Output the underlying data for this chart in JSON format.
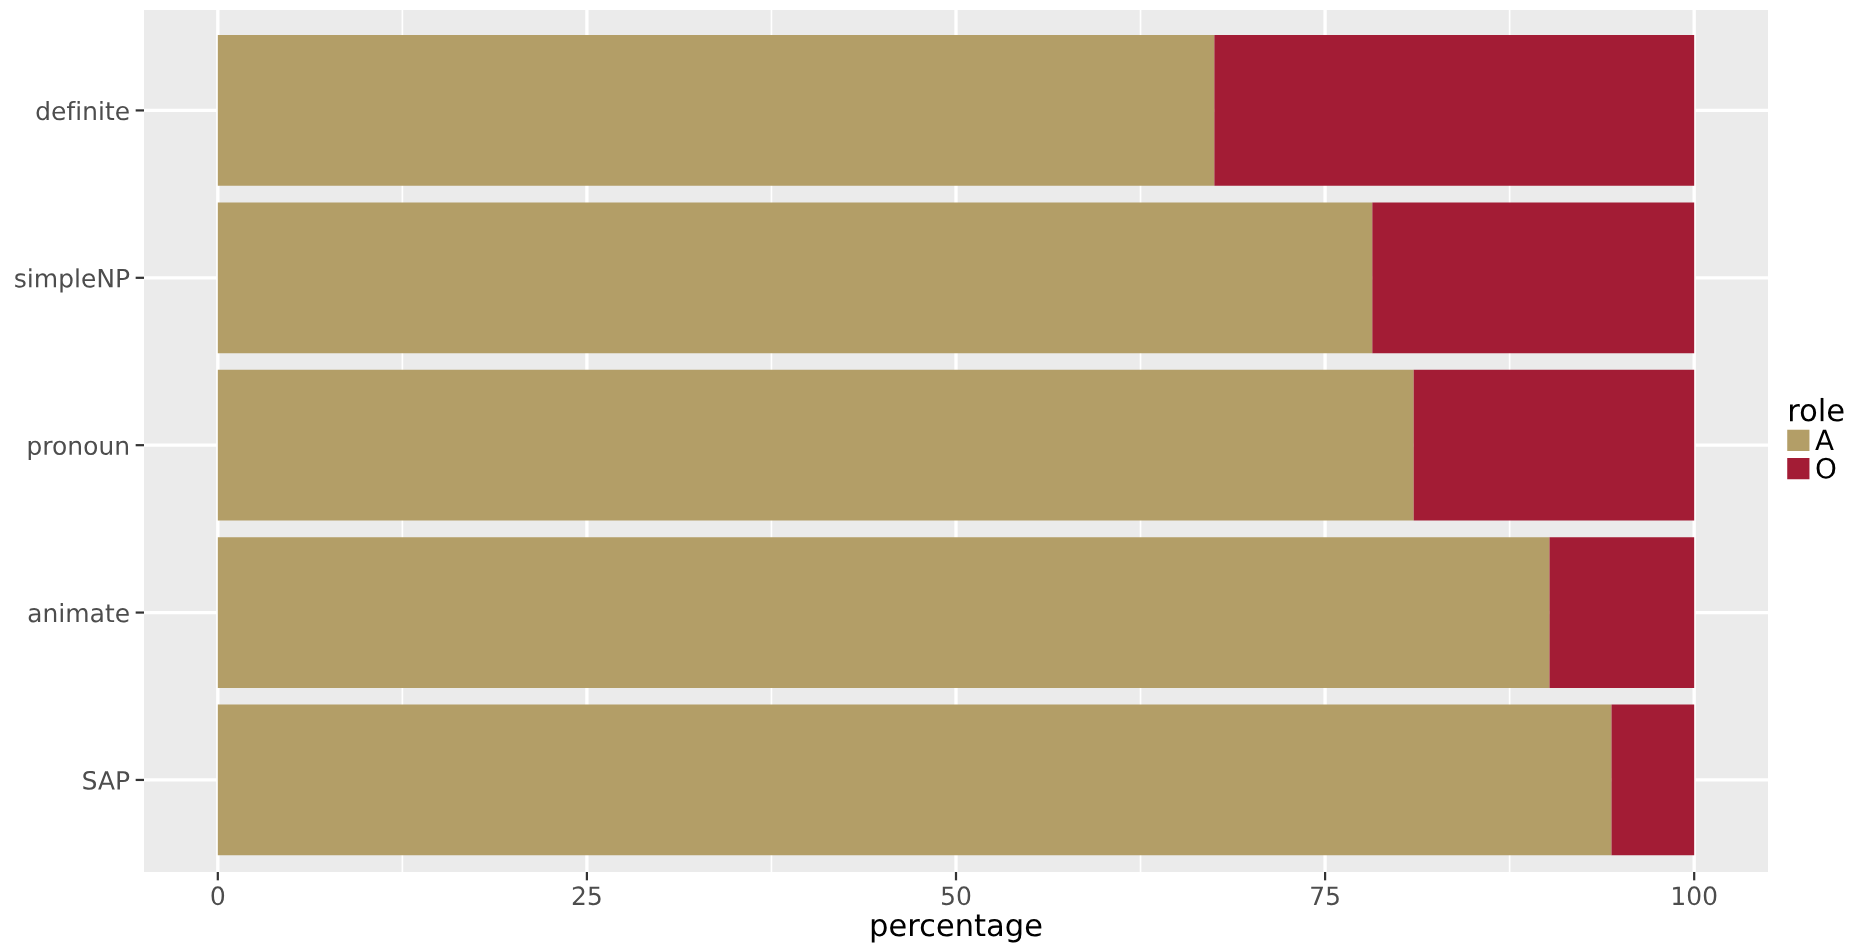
{
  "chart_data": {
    "type": "bar",
    "orientation": "horizontal",
    "stacked": true,
    "categories": [
      "definite",
      "simpleNP",
      "pronoun",
      "animate",
      "SAP"
    ],
    "series": [
      {
        "name": "A",
        "color": "#b39e67",
        "values": [
          67.5,
          78.2,
          81.0,
          90.2,
          94.4
        ]
      },
      {
        "name": "O",
        "color": "#a31c35",
        "values": [
          32.5,
          21.8,
          19.0,
          9.8,
          5.6
        ]
      }
    ],
    "xlabel": "percentage",
    "legend_title": "role",
    "legend": "right",
    "xlim": [
      -5,
      105
    ],
    "xticks": [
      0,
      25,
      50,
      75,
      100
    ],
    "grid": true
  }
}
